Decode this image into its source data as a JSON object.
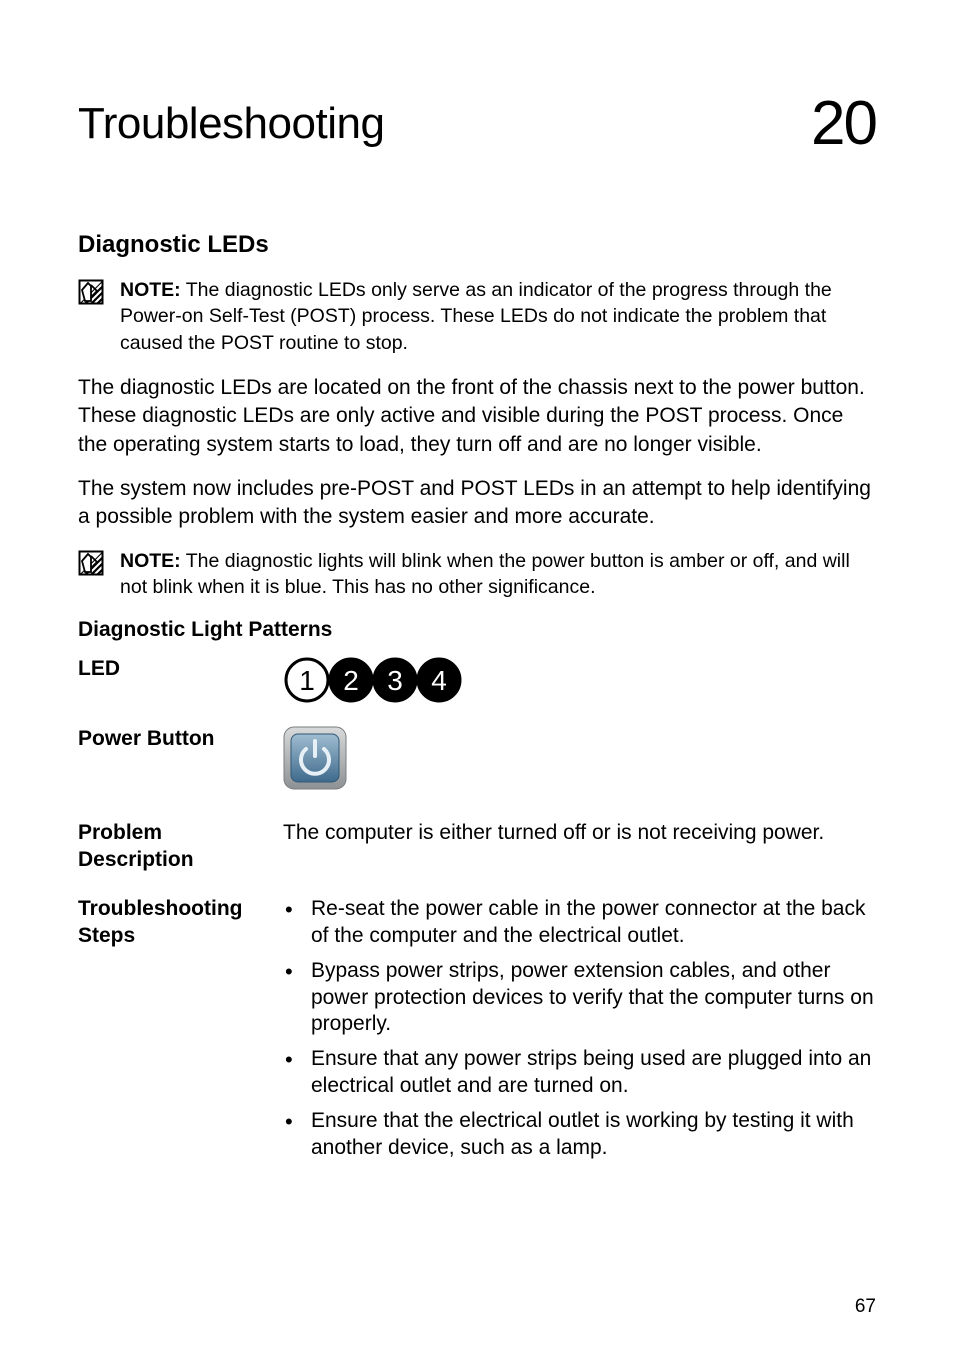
{
  "chapter": {
    "title": "Troubleshooting",
    "number": "20"
  },
  "section": {
    "heading": "Diagnostic LEDs"
  },
  "note1": {
    "label": "NOTE:",
    "text": " The diagnostic LEDs only serve as an indicator of the progress through the Power-on Self-Test (POST) process. These LEDs do not indicate the problem that caused the POST routine to stop."
  },
  "para1": "The diagnostic LEDs are located on the front of the chassis next to the power button. These diagnostic LEDs are only active and visible during the POST process. Once the operating system starts to load, they turn off and are no longer visible.",
  "para2": "The system now includes pre-POST and POST LEDs in an attempt to help identifying a possible problem with the system easier and more accurate.",
  "note2": {
    "label": "NOTE:",
    "text": " The diagnostic lights will blink when the power button is amber or off, and will not blink when it is blue. This has no other significance."
  },
  "subsection": {
    "heading": "Diagnostic Light Patterns"
  },
  "rows": {
    "led": {
      "label": "LED"
    },
    "power": {
      "label": "Power Button"
    },
    "problem": {
      "label": "Problem Description",
      "value": "The computer is either turned off or is not receiving power."
    },
    "ts": {
      "label": "Troubleshooting Steps",
      "items": [
        "Re-seat the power cable in the power connector at the back of the computer and the electrical outlet.",
        "Bypass power strips, power extension cables, and other power protection devices to verify that the computer turns on properly.",
        "Ensure that any power strips being used are plugged into an electrical outlet and are turned on.",
        "Ensure that the electrical outlet is working by testing it with another device, such as a lamp."
      ]
    }
  },
  "led_graphic": {
    "count": 4,
    "off_stroke": "#000000",
    "on_fill": "#000000",
    "on_text": "#ffffff",
    "radius": 21,
    "stroke_width": 3,
    "states": [
      "off",
      "on",
      "on",
      "on"
    ],
    "font_size": 28
  },
  "power_button": {
    "frame_color": "#b6b8b9",
    "body_color": "#5f89a7",
    "body_gradient_top": "#a0bdd1",
    "body_gradient_bottom": "#3e6a8c",
    "icon_color": "#e7f0f6",
    "size": 62,
    "radius": 10
  },
  "note_icon": {
    "stroke": "#000000",
    "hatch": "#000000",
    "width": 26,
    "height": 26
  },
  "page_number": "67",
  "typography": {
    "body_fontsize": 21,
    "note_fontsize": 19.5,
    "title_fontsize": 44,
    "chapnum_fontsize": 62,
    "section_fontsize": 24,
    "subsection_fontsize": 21
  },
  "colors": {
    "background": "#ffffff",
    "text": "#000000"
  }
}
